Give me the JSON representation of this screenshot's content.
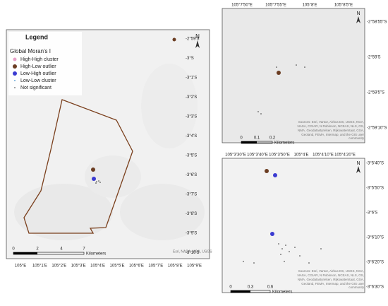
{
  "main_map": {
    "legend": {
      "title": "Legend",
      "subtitle": "Global Moran's I",
      "items": [
        "High-High cluster",
        "High-Low outlier",
        "Low-High outlier",
        "Low-Low cluster",
        "Not significant"
      ]
    },
    "north": "N",
    "scale": {
      "ticks": [
        "0",
        "2",
        "4",
        "7"
      ],
      "unit": "Kilometers"
    },
    "attribution": "Esri, NASA, NGA, USGS",
    "lat_labels": [
      "-2°59'S",
      "-3°S",
      "-3°1'S",
      "-3°2'S",
      "-3°3'S",
      "-3°4'S",
      "-3°5'S",
      "-3°6'S",
      "-3°7'S",
      "-3°8'S",
      "-3°9'S",
      "-3°10'S"
    ],
    "lon_labels": [
      "105°E",
      "105°1'E",
      "105°2'E",
      "105°3'E",
      "105°4'E",
      "105°5'E",
      "105°6'E",
      "105°7'E",
      "105°8'E",
      "105°9'E"
    ]
  },
  "inset_top": {
    "north": "N",
    "lon_labels": [
      "105°7'50\"E",
      "105°7'55\"E",
      "105°8'E",
      "105°8'5\"E"
    ],
    "lat_labels": [
      "-2°58'55\"S",
      "-2°59'S",
      "-2°59'5\"S",
      "-2°59'10\"S"
    ],
    "scale": {
      "ticks": [
        "0",
        "0.1",
        "0.2"
      ],
      "unit": "Kilometers"
    },
    "attribution": "Sources: Esri, Vantor, Airbus DS, USGS, NGA, NASA, CGIAR, N Robinson, NCEAS, NLS, OS, NMA, Geodatastyrelsen, Rijkswaterstaat, GSA, Geoland, FEMA, Intermap, and the GIS user community"
  },
  "inset_bottom": {
    "north": "N",
    "lon_labels": [
      "105°3'30\"E",
      "105°3'40\"E",
      "105°3'50\"E",
      "105°4'E",
      "105°4'10\"E",
      "105°4'20\"E"
    ],
    "lat_labels": [
      "-3°5'40\"S",
      "-3°5'50\"S",
      "-3°6'S",
      "-3°6'10\"S",
      "-3°6'20\"S",
      "-3°6'30\"S"
    ],
    "scale": {
      "ticks": [
        "0",
        "0.3",
        "0.6"
      ],
      "unit": "Kilometers"
    },
    "attribution": "Sources: Esri, Vantor, Airbus DS, USGS, NGA, NASA, CGIAR, N Robinson, NCEAS, NLS, OS, NMA, Geodatastyrelsen, Rijkswaterstaat, GSA, Geoland, FEMA, Intermap, and the GIS user community"
  }
}
